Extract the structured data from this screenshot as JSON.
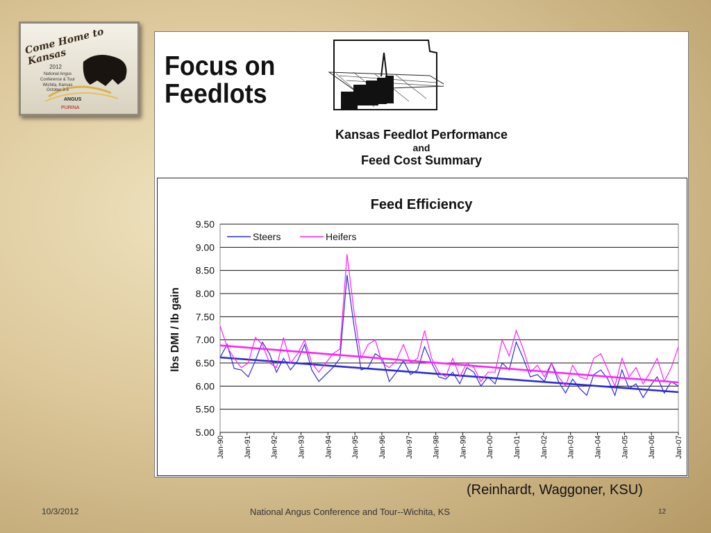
{
  "logo": {
    "title": "Come Home to Kansas",
    "year": "2012",
    "line1": "National Angus",
    "line2": "Conference & Tour",
    "line3": "Wichita, Kansas",
    "line4": "October 3-5",
    "brand1": "ANGUS",
    "brand2": "PURINA"
  },
  "header": {
    "focus_line1": "Focus on",
    "focus_line2": "Feedlots",
    "perf_line1": "Kansas Feedlot Performance",
    "perf_line2": "and",
    "perf_line3": "Feed Cost Summary"
  },
  "chart_data": {
    "type": "line",
    "title": "Feed Efficiency",
    "xlabel": "",
    "ylabel": "lbs DMI / lb gain",
    "ylim": [
      5.0,
      9.5
    ],
    "yticks": [
      "9.50",
      "9.00",
      "8.50",
      "8.00",
      "7.50",
      "7.00",
      "6.50",
      "6.00",
      "5.50",
      "5.00"
    ],
    "xticks": [
      "Jan-90",
      "Jan-91",
      "Jan-92",
      "Jan-93",
      "Jan-94",
      "Jan-95",
      "Jan-96",
      "Jan-97",
      "Jan-98",
      "Jan-99",
      "Jan-00",
      "Jan-01",
      "Jan-02",
      "Jan-03",
      "Jan-04",
      "Jan-05",
      "Jan-06",
      "Jan-07"
    ],
    "grid": "horizontal",
    "legend_position": "top-left",
    "colors": {
      "steers": "#2a2ad8",
      "heifers": "#ff1fff"
    },
    "series": [
      {
        "name": "Steers",
        "values": [
          6.62,
          6.9,
          6.38,
          6.35,
          6.2,
          6.55,
          6.95,
          6.7,
          6.3,
          6.6,
          6.35,
          6.55,
          6.9,
          6.35,
          6.1,
          6.25,
          6.4,
          6.6,
          8.4,
          7.3,
          6.35,
          6.4,
          6.7,
          6.6,
          6.1,
          6.3,
          6.55,
          6.25,
          6.35,
          6.85,
          6.5,
          6.2,
          6.15,
          6.3,
          6.05,
          6.4,
          6.3,
          6.0,
          6.2,
          6.05,
          6.5,
          6.35,
          6.95,
          6.6,
          6.2,
          6.25,
          6.1,
          6.5,
          6.1,
          5.85,
          6.15,
          5.95,
          5.8,
          6.25,
          6.35,
          6.15,
          5.8,
          6.35,
          5.95,
          6.05,
          5.75,
          6.0,
          6.2,
          5.85,
          6.1,
          6.0
        ],
        "trend": [
          6.62,
          5.87
        ]
      },
      {
        "name": "Heifers",
        "values": [
          7.3,
          6.85,
          6.6,
          6.4,
          6.5,
          7.05,
          6.9,
          6.5,
          6.4,
          7.05,
          6.5,
          6.7,
          7.0,
          6.5,
          6.3,
          6.5,
          6.7,
          6.8,
          8.85,
          7.6,
          6.6,
          6.9,
          7.0,
          6.5,
          6.4,
          6.55,
          6.9,
          6.5,
          6.6,
          7.2,
          6.6,
          6.3,
          6.2,
          6.6,
          6.2,
          6.5,
          6.4,
          6.1,
          6.3,
          6.3,
          7.0,
          6.65,
          7.2,
          6.8,
          6.3,
          6.45,
          6.2,
          6.5,
          6.2,
          6.0,
          6.45,
          6.2,
          6.15,
          6.6,
          6.7,
          6.35,
          6.0,
          6.6,
          6.2,
          6.4,
          6.05,
          6.3,
          6.6,
          6.1,
          6.4,
          6.85
        ],
        "trend": [
          6.88,
          6.08
        ]
      }
    ]
  },
  "footer": {
    "citation": "(Reinhardt, Waggoner, KSU)",
    "date": "10/3/2012",
    "center": "National Angus Conference and Tour--Wichita, KS",
    "page": "12"
  }
}
